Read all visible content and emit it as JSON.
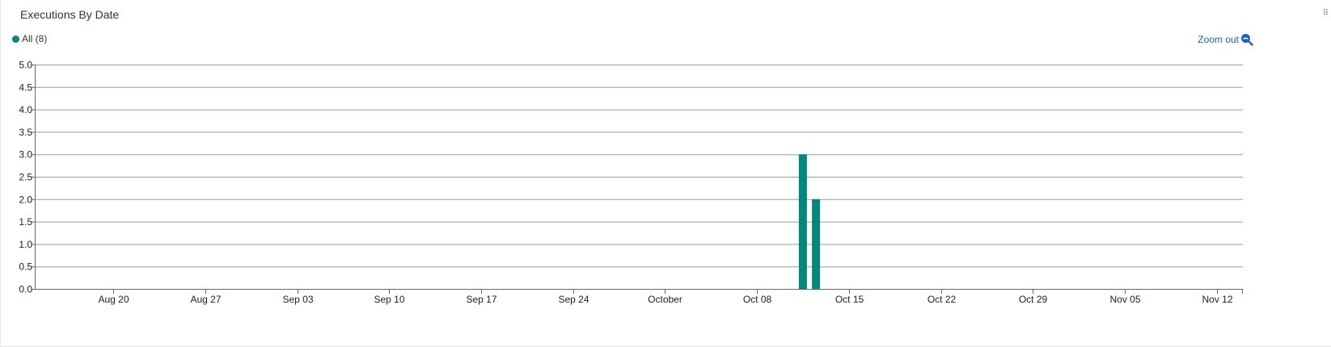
{
  "panel": {
    "title": "Executions By Date",
    "grip_icon": "grip-dots-icon"
  },
  "legend": {
    "label": "All (8)",
    "color": "#00897b"
  },
  "zoom": {
    "label": "Zoom out",
    "icon": "zoom-out-icon",
    "color": "#1a5fc4"
  },
  "chart_data": {
    "type": "bar",
    "title": "Executions By Date",
    "xlabel": "",
    "ylabel": "",
    "ylim": [
      0,
      5
    ],
    "yticks": [
      "0.0",
      "0.5",
      "1.0",
      "1.5",
      "2.0",
      "2.5",
      "3.0",
      "3.5",
      "4.0",
      "4.5",
      "5.0"
    ],
    "x_ticks": [
      "Aug 20",
      "Aug 27",
      "Sep 03",
      "Sep 10",
      "Sep 17",
      "Sep 24",
      "October",
      "Oct 08",
      "Oct 15",
      "Oct 22",
      "Oct 29",
      "Nov 05",
      "Nov 12"
    ],
    "x_start_date": "2018-08-14",
    "x_end_date": "2018-11-14",
    "series": [
      {
        "name": "All",
        "color": "#00897b",
        "points": [
          {
            "date": "2018-10-11",
            "value": 3
          },
          {
            "date": "2018-10-12",
            "value": 2
          }
        ]
      }
    ],
    "grid": true,
    "legend_position": "top-left"
  }
}
